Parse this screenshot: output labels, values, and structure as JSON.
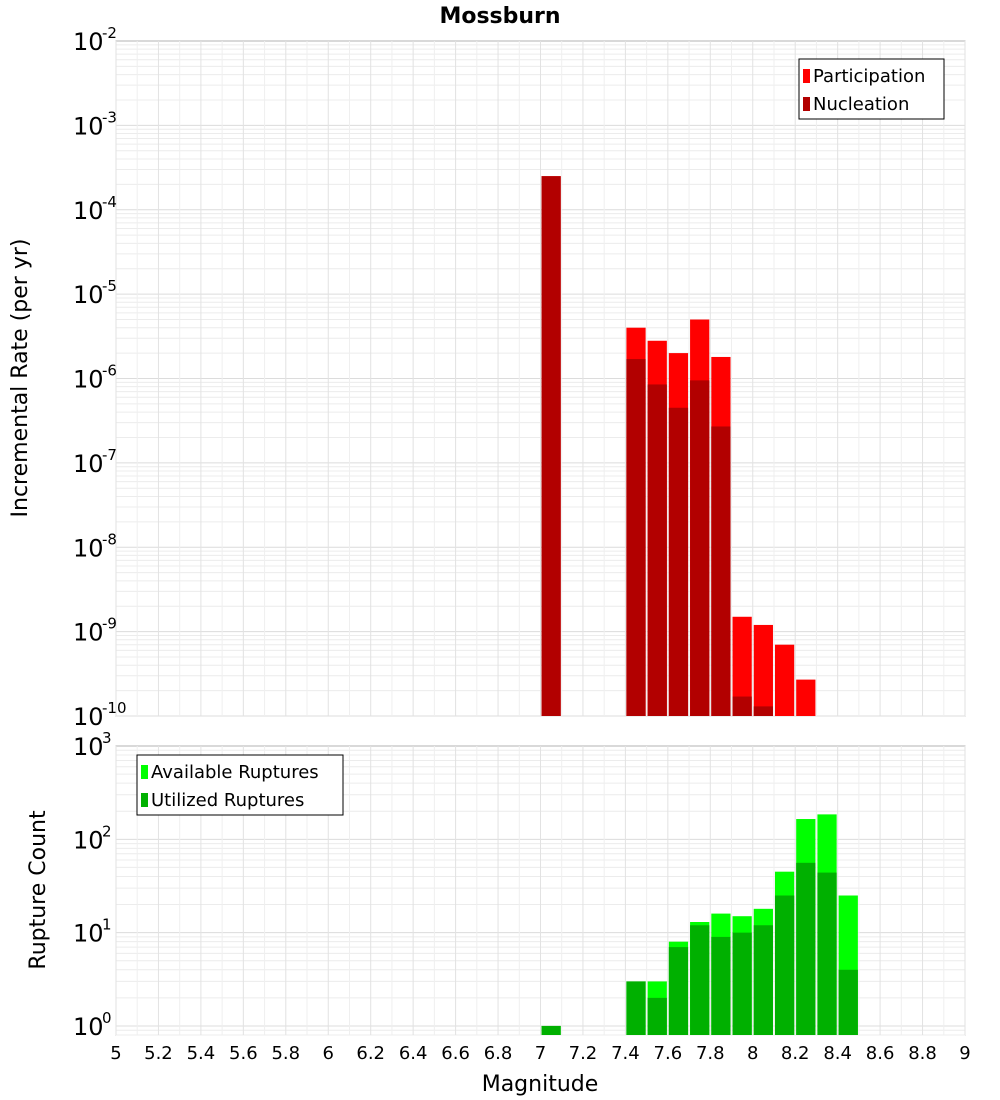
{
  "title": "Mossburn",
  "xlabel": "Magnitude",
  "x_tick_labels": [
    "5",
    "5.2",
    "5.4",
    "5.6",
    "5.8",
    "6",
    "6.2",
    "6.4",
    "6.6",
    "6.8",
    "7",
    "7.2",
    "7.4",
    "7.6",
    "7.8",
    "8",
    "8.2",
    "8.4",
    "8.6",
    "8.8",
    "9"
  ],
  "chart_data": [
    {
      "type": "bar",
      "yscale": "log",
      "xlim": [
        5,
        9
      ],
      "ylim": [
        1e-10,
        0.01
      ],
      "ylabel": "Incremental Rate (per yr)",
      "grid": true,
      "legend_position": "top-right",
      "y_tick_exponents": [
        "-10",
        "-9",
        "-8",
        "-7",
        "-6",
        "-5",
        "-4",
        "-3",
        "-2"
      ],
      "bin_width": 0.1,
      "series": [
        {
          "name": "Participation",
          "color": "#ff0000",
          "x": [
            7.05,
            7.45,
            7.55,
            7.65,
            7.75,
            7.85,
            7.95,
            8.05,
            8.15,
            8.25
          ],
          "values": [
            0.00025,
            4e-06,
            2.8e-06,
            2e-06,
            5e-06,
            1.8e-06,
            1.5e-09,
            1.2e-09,
            7e-10,
            2.7e-10
          ]
        },
        {
          "name": "Nucleation",
          "color": "#b20000",
          "x": [
            7.05,
            7.45,
            7.55,
            7.65,
            7.75,
            7.85,
            7.95,
            8.05
          ],
          "values": [
            0.00025,
            1.7e-06,
            8.5e-07,
            4.5e-07,
            9.5e-07,
            2.7e-07,
            1.7e-10,
            1.3e-10
          ]
        }
      ]
    },
    {
      "type": "bar",
      "yscale": "log",
      "xlim": [
        5,
        9
      ],
      "ylim": [
        0.8,
        1000
      ],
      "ylabel": "Rupture Count",
      "xlabel": "Magnitude",
      "grid": true,
      "legend_position": "top-left",
      "y_tick_exponents": [
        "0",
        "1",
        "2",
        "3"
      ],
      "bin_width": 0.1,
      "series": [
        {
          "name": "Available Ruptures",
          "color": "#00ff00",
          "x": [
            7.05,
            7.45,
            7.55,
            7.65,
            7.75,
            7.85,
            7.95,
            8.05,
            8.15,
            8.25,
            8.35,
            8.45
          ],
          "values": [
            1,
            3,
            3,
            8,
            13,
            16,
            15,
            18,
            45,
            165,
            185,
            25
          ]
        },
        {
          "name": "Utilized Ruptures",
          "color": "#00b000",
          "x": [
            7.05,
            7.45,
            7.55,
            7.65,
            7.75,
            7.85,
            7.95,
            8.05,
            8.15,
            8.25,
            8.35,
            8.45
          ],
          "values": [
            1,
            3,
            2,
            7,
            12,
            9,
            10,
            12,
            25,
            56,
            44,
            4
          ]
        }
      ]
    }
  ]
}
